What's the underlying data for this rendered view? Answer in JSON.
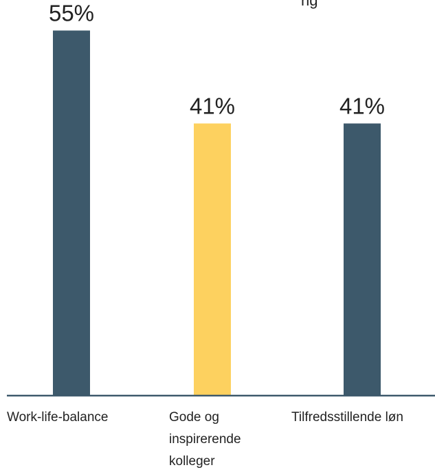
{
  "chart_data": {
    "type": "bar",
    "categories": [
      [
        "Work-life-balance"
      ],
      [
        "Gode og",
        "inspirerende",
        "kolleger"
      ],
      [
        "Tilfredsstillende løn"
      ]
    ],
    "values": [
      55,
      41,
      41
    ],
    "value_labels": [
      "55%",
      "41%",
      "41%"
    ],
    "bar_colors": [
      "#3d596b",
      "#fdd15f",
      "#3d596b"
    ],
    "axis_color": "#3d596b",
    "top_fragment": "ng",
    "title": "",
    "xlabel": "",
    "ylabel": "",
    "ylim": [
      0,
      59.6
    ],
    "grid": false,
    "legend": "none"
  }
}
